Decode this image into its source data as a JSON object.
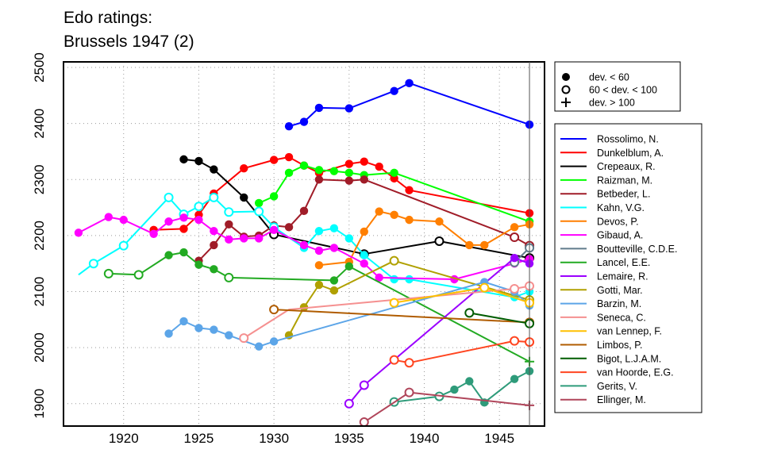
{
  "title_lines": [
    "Edo ratings:",
    "Brussels 1947 (2)"
  ],
  "chart_data": {
    "type": "line",
    "title": "Edo ratings: Brussels 1947 (2)",
    "xlabel": "",
    "ylabel": "",
    "xlim": [
      1916,
      1948
    ],
    "ylim": [
      1860,
      2510
    ],
    "x_ticks": [
      1920,
      1925,
      1930,
      1935,
      1940,
      1945
    ],
    "y_ticks": [
      1900,
      2000,
      2100,
      2200,
      2300,
      2400,
      2500
    ],
    "grid": true,
    "reference_line_x": 1947,
    "marker_legend": [
      {
        "marker": "filled",
        "label": "dev. < 60"
      },
      {
        "marker": "open",
        "label": "60 < dev. < 100"
      },
      {
        "marker": "plus",
        "label": "dev. > 100"
      }
    ],
    "series": [
      {
        "name": "Rossolimo, N.",
        "color": "#0000ff",
        "points": [
          [
            1931,
            2395,
            "f"
          ],
          [
            1932,
            2403,
            "f"
          ],
          [
            1933,
            2428,
            "f"
          ],
          [
            1935,
            2427,
            "f"
          ],
          [
            1938,
            2458,
            "f"
          ],
          [
            1939,
            2472,
            "f"
          ],
          [
            1947,
            2398,
            "f"
          ]
        ]
      },
      {
        "name": "Dunkelblum, A.",
        "color": "#ff0000",
        "points": [
          [
            1922,
            2210,
            "f"
          ],
          [
            1924,
            2212,
            "f"
          ],
          [
            1925,
            2237,
            "f"
          ],
          [
            1926,
            2275,
            "f"
          ],
          [
            1928,
            2320,
            "f"
          ],
          [
            1930,
            2335,
            "f"
          ],
          [
            1931,
            2340,
            "f"
          ],
          [
            1932,
            2325,
            "f"
          ],
          [
            1933,
            2312,
            "f"
          ],
          [
            1935,
            2328,
            "f"
          ],
          [
            1936,
            2332,
            "f"
          ],
          [
            1937,
            2323,
            "f"
          ],
          [
            1938,
            2302,
            "f"
          ],
          [
            1939,
            2281,
            "f"
          ],
          [
            1947,
            2240,
            "f"
          ]
        ]
      },
      {
        "name": "Crepeaux, R.",
        "color": "#000000",
        "points": [
          [
            1924,
            2336,
            "f"
          ],
          [
            1925,
            2333,
            "f"
          ],
          [
            1926,
            2318,
            "f"
          ],
          [
            1928,
            2268,
            "f"
          ],
          [
            1930,
            2202,
            "o"
          ],
          [
            1936,
            2167,
            "o"
          ],
          [
            1941,
            2190,
            "o"
          ],
          [
            1947,
            2160,
            "o"
          ]
        ]
      },
      {
        "name": "Raizman, M.",
        "color": "#00ff00",
        "points": [
          [
            1929,
            2258,
            "f"
          ],
          [
            1930,
            2270,
            "f"
          ],
          [
            1931,
            2312,
            "f"
          ],
          [
            1932,
            2325,
            "f"
          ],
          [
            1933,
            2317,
            "f"
          ],
          [
            1934,
            2315,
            "f"
          ],
          [
            1935,
            2312,
            "f"
          ],
          [
            1936,
            2308,
            "f"
          ],
          [
            1938,
            2312,
            "f"
          ],
          [
            1947,
            2225,
            "f"
          ]
        ]
      },
      {
        "name": "Betbeder, L.",
        "color": "#a01c28",
        "points": [
          [
            1925,
            2155,
            "f"
          ],
          [
            1926,
            2183,
            "f"
          ],
          [
            1927,
            2220,
            "f"
          ],
          [
            1928,
            2198,
            "f"
          ],
          [
            1929,
            2200,
            "f"
          ],
          [
            1930,
            2218,
            "f"
          ],
          [
            1931,
            2215,
            "f"
          ],
          [
            1932,
            2244,
            "f"
          ],
          [
            1933,
            2300,
            "f"
          ],
          [
            1935,
            2298,
            "f"
          ],
          [
            1936,
            2300,
            "f"
          ],
          [
            1946,
            2197,
            "o"
          ],
          [
            1947,
            2182,
            "o"
          ]
        ]
      },
      {
        "name": "Kahn, V.G.",
        "color": "#00ffff",
        "points": [
          [
            1917,
            2130,
            "n"
          ],
          [
            1918,
            2150,
            "o"
          ],
          [
            1920,
            2182,
            "o"
          ],
          [
            1923,
            2268,
            "o"
          ],
          [
            1924,
            2238,
            "o"
          ],
          [
            1925,
            2252,
            "o"
          ],
          [
            1926,
            2268,
            "o"
          ],
          [
            1927,
            2242,
            "o"
          ],
          [
            1929,
            2243,
            "o"
          ],
          [
            1930,
            2215,
            "o"
          ],
          [
            1932,
            2178,
            "f"
          ],
          [
            1933,
            2208,
            "f"
          ],
          [
            1934,
            2213,
            "f"
          ],
          [
            1935,
            2195,
            "f"
          ],
          [
            1936,
            2165,
            "f"
          ],
          [
            1938,
            2122,
            "f"
          ],
          [
            1939,
            2122,
            "f"
          ],
          [
            1946,
            2090,
            "f"
          ],
          [
            1947,
            2100,
            "f"
          ]
        ]
      },
      {
        "name": "Devos, P.",
        "color": "#ff7f00",
        "points": [
          [
            1933,
            2147,
            "f"
          ],
          [
            1935,
            2153,
            "f"
          ],
          [
            1936,
            2207,
            "f"
          ],
          [
            1937,
            2243,
            "f"
          ],
          [
            1938,
            2237,
            "f"
          ],
          [
            1939,
            2228,
            "f"
          ],
          [
            1941,
            2225,
            "f"
          ],
          [
            1943,
            2183,
            "f"
          ],
          [
            1944,
            2183,
            "f"
          ],
          [
            1946,
            2215,
            "f"
          ],
          [
            1947,
            2220,
            "f"
          ]
        ]
      },
      {
        "name": "Gibaud, A.",
        "color": "#ff00ff",
        "points": [
          [
            1917,
            2205,
            "f"
          ],
          [
            1919,
            2233,
            "f"
          ],
          [
            1920,
            2228,
            "f"
          ],
          [
            1922,
            2203,
            "f"
          ],
          [
            1923,
            2225,
            "f"
          ],
          [
            1924,
            2232,
            "f"
          ],
          [
            1925,
            2228,
            "f"
          ],
          [
            1926,
            2208,
            "f"
          ],
          [
            1927,
            2193,
            "f"
          ],
          [
            1928,
            2195,
            "f"
          ],
          [
            1929,
            2195,
            "f"
          ],
          [
            1930,
            2210,
            "f"
          ],
          [
            1932,
            2183,
            "f"
          ],
          [
            1933,
            2173,
            "f"
          ],
          [
            1934,
            2178,
            "f"
          ],
          [
            1936,
            2150,
            "f"
          ],
          [
            1937,
            2125,
            "f"
          ],
          [
            1942,
            2122,
            "f"
          ],
          [
            1946,
            2150,
            "f"
          ],
          [
            1947,
            2158,
            "f"
          ]
        ]
      },
      {
        "name": "Boutteville, C.D.E.",
        "color": "#607b8b",
        "points": [
          [
            1946,
            2152,
            "o"
          ],
          [
            1947,
            2178,
            "o"
          ]
        ]
      },
      {
        "name": "Lancel, E.E.",
        "color": "#22aa22",
        "points": [
          [
            1919,
            2132,
            "o"
          ],
          [
            1921,
            2130,
            "o"
          ],
          [
            1923,
            2165,
            "f"
          ],
          [
            1924,
            2170,
            "f"
          ],
          [
            1925,
            2148,
            "f"
          ],
          [
            1926,
            2140,
            "f"
          ],
          [
            1927,
            2125,
            "o"
          ],
          [
            1934,
            2120,
            "f"
          ],
          [
            1935,
            2145,
            "f"
          ],
          [
            1947,
            1975,
            "p"
          ]
        ]
      },
      {
        "name": "Lemaire, R.",
        "color": "#9b00ff",
        "points": [
          [
            1935,
            1900,
            "o"
          ],
          [
            1936,
            1933,
            "o"
          ],
          [
            1946,
            2160,
            "f"
          ],
          [
            1947,
            2150,
            "f"
          ]
        ]
      },
      {
        "name": "Gotti, Mar.",
        "color": "#b0a000",
        "points": [
          [
            1931,
            2022,
            "f"
          ],
          [
            1932,
            2072,
            "f"
          ],
          [
            1933,
            2112,
            "f"
          ],
          [
            1934,
            2102,
            "f"
          ],
          [
            1938,
            2155,
            "o"
          ],
          [
            1947,
            2085,
            "o"
          ]
        ]
      },
      {
        "name": "Barzin, M.",
        "color": "#5ca5e8",
        "points": [
          [
            1923,
            2025,
            "f"
          ],
          [
            1924,
            2047,
            "f"
          ],
          [
            1925,
            2035,
            "f"
          ],
          [
            1926,
            2032,
            "f"
          ],
          [
            1927,
            2022,
            "f"
          ],
          [
            1929,
            2002,
            "f"
          ],
          [
            1930,
            2011,
            "f"
          ],
          [
            1944,
            2117,
            "f"
          ],
          [
            1946,
            2100,
            "f"
          ],
          [
            1947,
            2075,
            "f"
          ]
        ]
      },
      {
        "name": "Seneca, C.",
        "color": "#f59090",
        "points": [
          [
            1928,
            2017,
            "o"
          ],
          [
            1931,
            2068,
            "n"
          ],
          [
            1946,
            2105,
            "o"
          ],
          [
            1947,
            2110,
            "o"
          ]
        ]
      },
      {
        "name": "van Lennep, F.",
        "color": "#ffc000",
        "points": [
          [
            1938,
            2080,
            "o"
          ],
          [
            1944,
            2107,
            "o"
          ],
          [
            1947,
            2080,
            "o"
          ]
        ]
      },
      {
        "name": "Limbos, P.",
        "color": "#b05c00",
        "points": [
          [
            1930,
            2068,
            "o"
          ],
          [
            1947,
            2045,
            "o"
          ]
        ]
      },
      {
        "name": "Bigot, L.J.A.M.",
        "color": "#005c00",
        "points": [
          [
            1943,
            2062,
            "o"
          ],
          [
            1947,
            2043,
            "o"
          ]
        ]
      },
      {
        "name": "van Hoorde, E.G.",
        "color": "#ff4520",
        "points": [
          [
            1938,
            1978,
            "o"
          ],
          [
            1939,
            1973,
            "o"
          ],
          [
            1946,
            2012,
            "o"
          ],
          [
            1947,
            2010,
            "o"
          ]
        ]
      },
      {
        "name": "Gerits, V.",
        "color": "#2e9b7a",
        "points": [
          [
            1938,
            1903,
            "o"
          ],
          [
            1941,
            1913,
            "o"
          ],
          [
            1942,
            1925,
            "f"
          ],
          [
            1943,
            1940,
            "f"
          ],
          [
            1944,
            1902,
            "f"
          ],
          [
            1946,
            1944,
            "f"
          ],
          [
            1947,
            1958,
            "f"
          ]
        ]
      },
      {
        "name": "Ellinger, M.",
        "color": "#b0455a",
        "points": [
          [
            1936,
            1867,
            "o"
          ],
          [
            1939,
            1920,
            "o"
          ],
          [
            1947,
            1897,
            "p"
          ]
        ]
      }
    ]
  }
}
